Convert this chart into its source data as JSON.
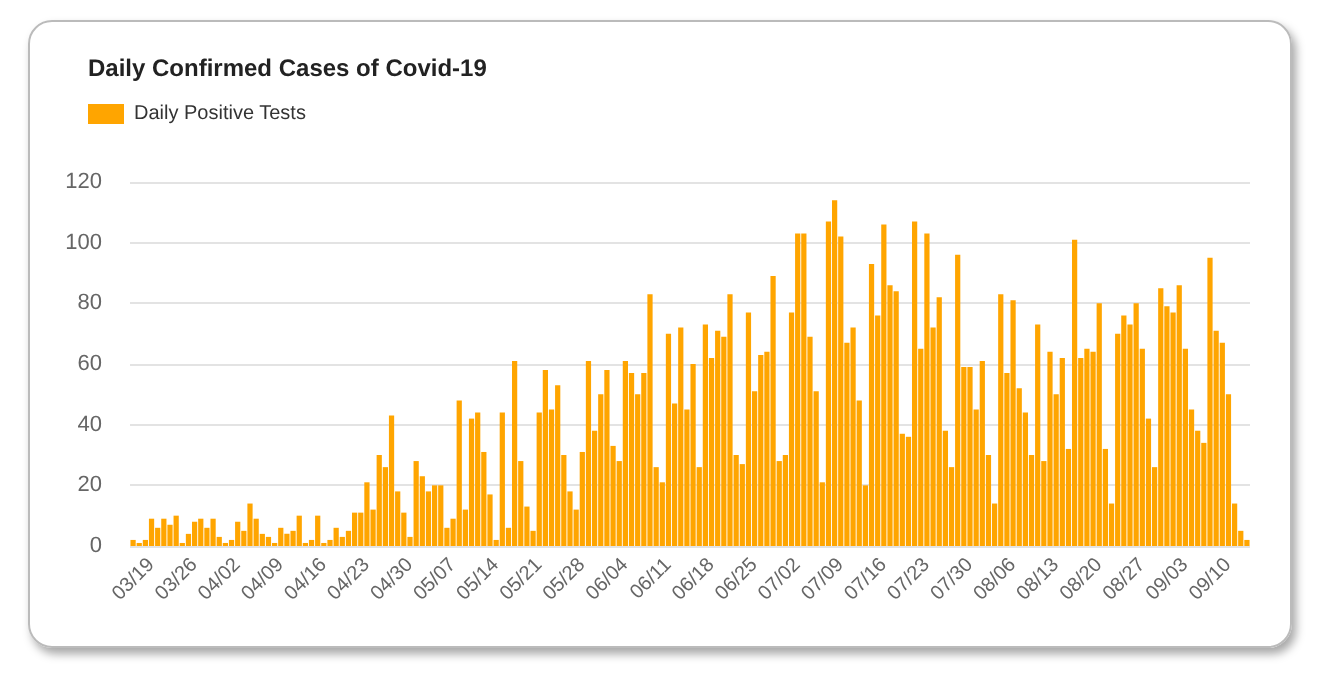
{
  "chart_data": {
    "type": "bar",
    "title": "Daily Confirmed Cases of Covid-19",
    "categories": [
      null,
      null,
      null,
      "03/19",
      null,
      null,
      null,
      null,
      null,
      null,
      "03/26",
      null,
      null,
      null,
      null,
      null,
      null,
      "04/02",
      null,
      null,
      null,
      null,
      null,
      null,
      "04/09",
      null,
      null,
      null,
      null,
      null,
      null,
      "04/16",
      null,
      null,
      null,
      null,
      null,
      null,
      "04/23",
      null,
      null,
      null,
      null,
      null,
      null,
      "04/30",
      null,
      null,
      null,
      null,
      null,
      null,
      "05/07",
      null,
      null,
      null,
      null,
      null,
      null,
      "05/14",
      null,
      null,
      null,
      null,
      null,
      null,
      "05/21",
      null,
      null,
      null,
      null,
      null,
      null,
      "05/28",
      null,
      null,
      null,
      null,
      null,
      null,
      "06/04",
      null,
      null,
      null,
      null,
      null,
      null,
      "06/11",
      null,
      null,
      null,
      null,
      null,
      null,
      "06/18",
      null,
      null,
      null,
      null,
      null,
      null,
      "06/25",
      null,
      null,
      null,
      null,
      null,
      null,
      "07/02",
      null,
      null,
      null,
      null,
      null,
      null,
      "07/09",
      null,
      null,
      null,
      null,
      null,
      null,
      "07/16",
      null,
      null,
      null,
      null,
      null,
      null,
      "07/23",
      null,
      null,
      null,
      null,
      null,
      null,
      "07/30",
      null,
      null,
      null,
      null,
      null,
      null,
      "08/06",
      null,
      null,
      null,
      null,
      null,
      null,
      "08/13",
      null,
      null,
      null,
      null,
      null,
      null,
      "08/20",
      null,
      null,
      null,
      null,
      null,
      null,
      "08/27",
      null,
      null,
      null,
      null,
      null,
      null,
      "09/03",
      null,
      null,
      null,
      null,
      null,
      null,
      "09/10",
      null,
      null,
      null
    ],
    "series": [
      {
        "name": "Daily Positive Tests",
        "color": "#ffa500",
        "values": [
          2,
          1,
          2,
          9,
          6,
          9,
          7,
          10,
          1,
          4,
          8,
          9,
          6,
          9,
          3,
          1,
          2,
          8,
          5,
          14,
          9,
          4,
          3,
          1,
          6,
          4,
          5,
          10,
          1,
          2,
          10,
          1,
          2,
          6,
          3,
          5,
          11,
          11,
          21,
          12,
          30,
          26,
          43,
          18,
          11,
          3,
          28,
          23,
          18,
          20,
          20,
          6,
          9,
          48,
          12,
          42,
          44,
          31,
          17,
          2,
          44,
          6,
          61,
          28,
          13,
          5,
          44,
          58,
          45,
          53,
          30,
          18,
          12,
          31,
          61,
          38,
          50,
          58,
          33,
          28,
          61,
          57,
          50,
          57,
          83,
          26,
          21,
          70,
          47,
          72,
          45,
          60,
          26,
          73,
          62,
          71,
          69,
          83,
          30,
          27,
          77,
          51,
          63,
          64,
          89,
          28,
          30,
          77,
          103,
          103,
          69,
          51,
          21,
          107,
          114,
          102,
          67,
          72,
          48,
          20,
          93,
          76,
          106,
          86,
          84,
          37,
          36,
          107,
          65,
          103,
          72,
          82,
          38,
          26,
          96,
          59,
          59,
          45,
          61,
          30,
          14,
          83,
          57,
          81,
          52,
          44,
          30,
          73,
          28,
          64,
          50,
          62,
          32,
          101,
          62,
          65,
          64,
          80,
          32,
          14,
          70,
          76,
          73,
          80,
          65,
          42,
          26,
          85,
          79,
          77,
          86,
          65,
          45,
          38,
          34,
          95,
          71,
          67,
          50,
          14,
          5,
          2
        ]
      }
    ],
    "ylim": [
      0,
      120
    ],
    "yticks": [
      0,
      20,
      40,
      60,
      80,
      100,
      120
    ],
    "grid": "y",
    "legend": "top left"
  }
}
